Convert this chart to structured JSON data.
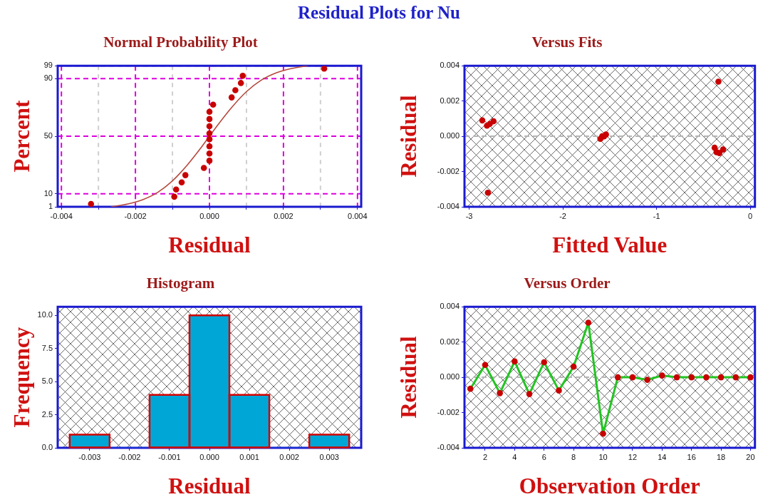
{
  "chart_data": [
    {
      "type": "scatter",
      "title": "Normal Probability Plot",
      "xlabel": "Residual",
      "ylabel": "Percent",
      "annotations": [
        "Residual Plots for Nu"
      ],
      "marker": "circle",
      "grid": true,
      "series": [
        {
          "color": "#c80000",
          "x": [
            -0.0032,
            -0.00095,
            -0.0009,
            -0.00075,
            -0.00065,
            -0.00015,
            0,
            0,
            0,
            0,
            0,
            0,
            0,
            0,
            0.0001,
            0.0006,
            0.0007,
            0.00085,
            0.0009,
            0.0031
          ],
          "values": [
            3,
            8,
            13,
            18,
            23,
            28,
            33,
            38,
            43,
            48,
            52,
            57,
            62,
            67,
            72,
            77,
            82,
            87,
            92,
            97
          ]
        },
        {
          "type": "line",
          "marker": "none",
          "color": "#b5483c",
          "x": [
            -0.00265,
            -0.0022,
            -0.0018,
            -0.0014,
            -0.001,
            -0.0006,
            -0.0002,
            0,
            0.0002,
            0.0006,
            0.001,
            0.0014,
            0.0018,
            0.0022,
            0.00265
          ],
          "values": [
            1,
            3,
            6,
            11,
            19,
            30,
            43,
            50,
            57,
            70,
            81,
            89,
            94,
            97,
            99
          ]
        }
      ],
      "xlim": [
        -0.0041,
        0.0041
      ],
      "xticks": [
        -0.004,
        {
          "value": -0.003,
          "label": null
        },
        -0.002,
        {
          "value": -0.001,
          "label": null
        },
        {
          "value": 0,
          "label": "0.000"
        },
        {
          "value": 0.001,
          "label": null
        },
        0.002,
        {
          "value": 0.003,
          "label": null
        },
        0.004
      ],
      "ylim": [
        1,
        99
      ],
      "yticks": [
        1,
        10,
        50,
        90,
        99
      ]
    },
    {
      "type": "scatter",
      "title": "Versus Fits",
      "xlabel": "Fitted Value",
      "ylabel": "Residual",
      "marker": "circle",
      "series": [
        {
          "color": "#c80000",
          "x": [
            -0.38,
            -2.78,
            -0.36,
            -2.86,
            -0.33,
            -2.74,
            -0.29,
            -2.81,
            -0.34,
            -2.8,
            -1.58,
            -1.6,
            -1.54,
            -1.57,
            -1.56
          ],
          "values": [
            -0.00065,
            0.0007,
            -0.0009,
            0.0009,
            -0.00095,
            0.00085,
            -0.00075,
            0.0006,
            0.0031,
            -0.0032,
            0,
            -0.00015,
            0.0001,
            0,
            0
          ]
        }
      ],
      "xlim": [
        -3.05,
        0.05
      ],
      "xticks": [
        -3,
        -2,
        -1,
        0
      ],
      "ylim": [
        -0.004,
        0.004
      ],
      "yticks": [
        -0.004,
        -0.002,
        {
          "value": 0,
          "label": "0.000"
        },
        0.002,
        0.004
      ],
      "ref_lines": [
        {
          "axis": "y",
          "value": 0,
          "color": "#b4b4b4",
          "line_style": "dashed"
        }
      ]
    },
    {
      "type": "histogram",
      "title": "Histogram",
      "xlabel": "Residual",
      "ylabel": "Frequency",
      "color": "#00a6d6",
      "bins": [
        -0.0035,
        -0.0025,
        -0.0015,
        -0.0005,
        0.0005,
        0.0015,
        0.0025,
        0.0035
      ],
      "values": [
        1,
        0,
        4,
        10,
        4,
        0,
        1
      ],
      "xlim": [
        -0.0038,
        0.0038
      ],
      "xticks": [
        -0.003,
        -0.002,
        -0.001,
        {
          "value": 0,
          "label": "0.000"
        },
        0.001,
        0.002,
        0.003
      ],
      "ylim": [
        0,
        10.65
      ],
      "yticks": [
        {
          "value": 0,
          "label": "0.0"
        },
        2.5,
        {
          "value": 5,
          "label": "5.0"
        },
        7.5,
        {
          "value": 10,
          "label": "10.0"
        }
      ]
    },
    {
      "type": "line",
      "title": "Versus Order",
      "xlabel": "Observation Order",
      "ylabel": "Residual",
      "marker": "circle",
      "x": [
        1,
        2,
        3,
        4,
        5,
        6,
        7,
        8,
        9,
        10,
        11,
        12,
        13,
        14,
        15,
        16,
        17,
        18,
        19,
        20
      ],
      "series": [
        {
          "color": "#22c422",
          "colors": [
            "#c80000",
            "#c80000",
            "#c80000",
            "#c80000",
            "#c80000",
            "#c80000",
            "#c80000",
            "#c80000",
            "#c80000",
            "#c80000",
            "#c80000",
            "#c80000",
            "#c80000",
            "#c80000",
            "#c80000",
            "#c80000",
            "#c80000",
            "#c80000",
            "#c80000",
            "#c80000"
          ],
          "values": [
            -0.00065,
            0.0007,
            -0.0009,
            0.0009,
            -0.00095,
            0.00085,
            -0.00075,
            0.0006,
            0.0031,
            -0.0032,
            0,
            0,
            -0.00015,
            0.0001,
            0,
            0,
            0,
            0,
            0,
            0
          ]
        }
      ],
      "xlim": [
        0.6,
        20.3
      ],
      "xticks": [
        2,
        4,
        6,
        8,
        10,
        12,
        14,
        16,
        18,
        20
      ],
      "ylim": [
        -0.004,
        0.004
      ],
      "yticks": [
        -0.004,
        -0.002,
        {
          "value": 0,
          "label": "0.000"
        },
        0.002,
        0.004
      ],
      "ref_lines": [
        {
          "axis": "y",
          "value": 0,
          "color": "#b4b4b4",
          "line_style": "dashed"
        }
      ]
    }
  ]
}
